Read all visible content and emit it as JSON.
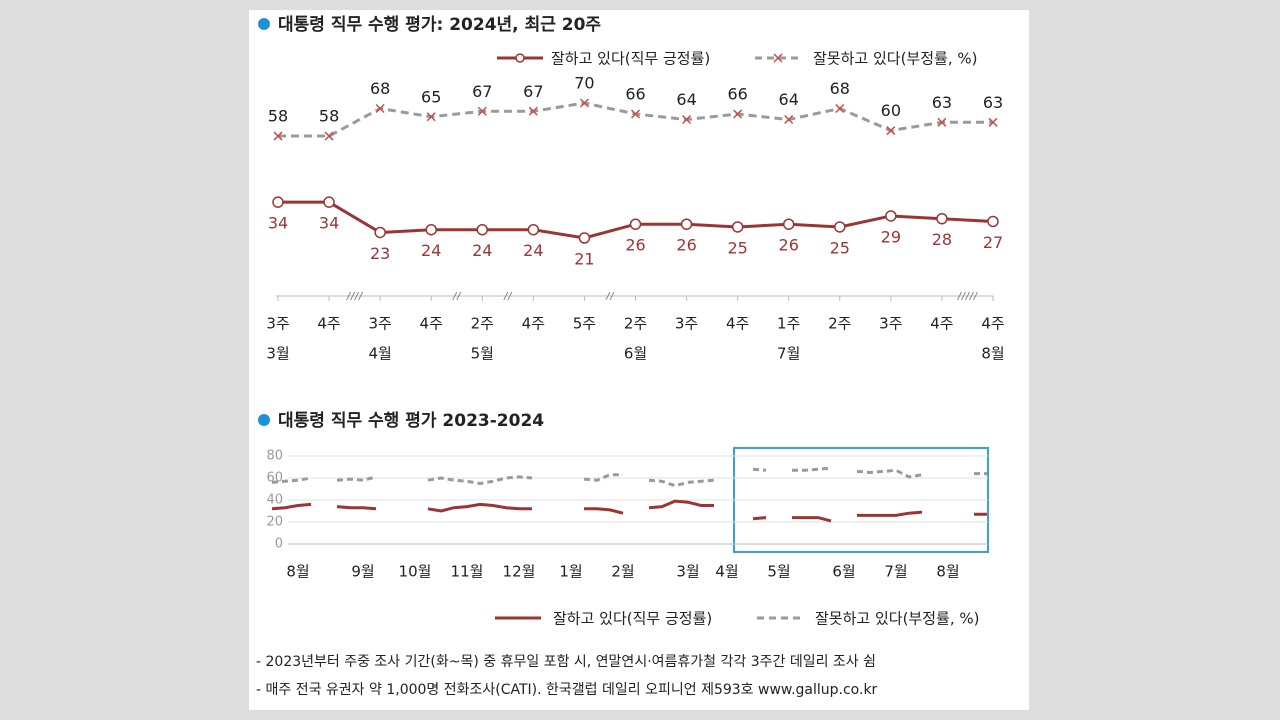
{
  "chart_data": [
    {
      "type": "line",
      "title": "대통령 직무 수행 평가: 2024년, 최근 20주",
      "categories": [
        "3주",
        "4주",
        "3주",
        "4주",
        "2주",
        "4주",
        "5주",
        "2주",
        "3주",
        "4주",
        "1주",
        "2주",
        "3주",
        "4주",
        "4주"
      ],
      "months": [
        "3월",
        null,
        "4월",
        null,
        "5월",
        null,
        null,
        "6월",
        null,
        null,
        "7월",
        null,
        null,
        null,
        "8월"
      ],
      "series": [
        {
          "name": "잘하고 있다(직무 긍정률)",
          "color": "#9b3535",
          "marker": "circle",
          "label_position": "below",
          "label_color": "#9b3535",
          "values": [
            34,
            34,
            23,
            24,
            24,
            24,
            21,
            26,
            26,
            25,
            26,
            25,
            29,
            28,
            27
          ]
        },
        {
          "name": "잘못하고 있다(부정률, %)",
          "color": "#9a9a9a",
          "dash": true,
          "marker": "x",
          "marker_color": "#c0504d",
          "label_position": "above",
          "label_color": "#222222",
          "values": [
            58,
            58,
            68,
            65,
            67,
            67,
            70,
            66,
            64,
            66,
            64,
            68,
            60,
            63,
            63
          ]
        }
      ]
    },
    {
      "type": "line",
      "title": "대통령 직무 수행 평가 2023-2024",
      "categories": [
        null,
        null,
        "8월",
        null,
        null,
        null,
        null,
        "9월",
        null,
        null,
        null,
        "10월",
        null,
        null,
        null,
        "11월",
        null,
        null,
        null,
        "12월",
        null,
        null,
        null,
        "1월",
        null,
        null,
        null,
        "2월",
        null,
        null,
        null,
        null,
        "3월",
        null,
        null,
        "4월",
        null,
        null,
        null,
        "5월",
        null,
        null,
        null,
        null,
        "6월",
        null,
        null,
        null,
        "7월",
        null,
        null,
        null,
        "8월",
        null,
        null,
        null
      ],
      "ylim": [
        0,
        80
      ],
      "yticks": [
        0,
        20,
        40,
        60,
        80
      ],
      "grid": true,
      "series": [
        {
          "name": "잘하고 있다(직무 긍정률)",
          "color": "#9b3535",
          "values": [
            32,
            33,
            35,
            36,
            null,
            34,
            33,
            33,
            32,
            null,
            null,
            null,
            32,
            30,
            33,
            34,
            36,
            35,
            33,
            32,
            32,
            null,
            null,
            null,
            32,
            32,
            31,
            28,
            null,
            33,
            34,
            39,
            38,
            35,
            35,
            null,
            null,
            23,
            24,
            null,
            24,
            24,
            24,
            21,
            null,
            26,
            26,
            26,
            26,
            28,
            29,
            null,
            null,
            null,
            27,
            27
          ]
        },
        {
          "name": "잘못하고 있다(부정률, %)",
          "color": "#9a9a9a",
          "dash": true,
          "values": [
            56,
            57,
            58,
            60,
            null,
            58,
            59,
            58,
            61,
            null,
            null,
            null,
            58,
            60,
            58,
            57,
            55,
            57,
            60,
            61,
            60,
            null,
            null,
            null,
            59,
            58,
            63,
            63,
            null,
            58,
            57,
            53,
            56,
            57,
            58,
            null,
            null,
            68,
            67,
            null,
            67,
            67,
            68,
            69,
            null,
            66,
            65,
            66,
            67,
            61,
            63,
            null,
            null,
            null,
            64,
            64
          ]
        }
      ]
    }
  ],
  "notes": [
    "- 2023년부터 주중 조사 기간(화~목) 중 휴무일 포함 시, 연말연시·여름휴가철 각각 3주간 데일리 조사 쉼",
    "- 매주 전국 유권자 약 1,000명 전화조사(CATI). 한국갤럽 데일리 오피니언 제593호 www.gallup.co.kr"
  ]
}
